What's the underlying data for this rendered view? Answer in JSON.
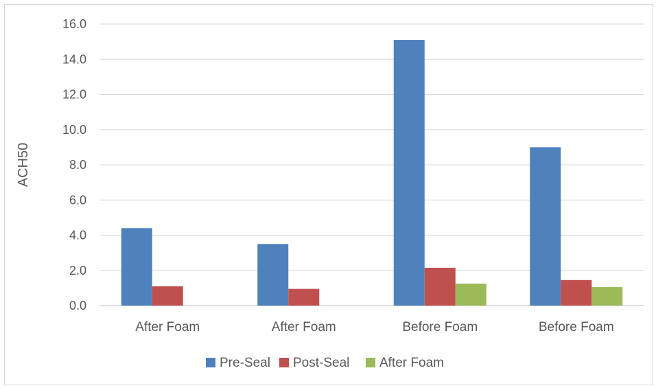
{
  "chart_data": {
    "type": "bar",
    "title": "",
    "xlabel": "",
    "ylabel": "ACH50",
    "categories": [
      "After Foam",
      "After Foam",
      "Before Foam",
      "Before Foam"
    ],
    "series": [
      {
        "name": "Pre-Seal",
        "color": "#4f81bd",
        "values": [
          4.4,
          3.5,
          15.1,
          9.0
        ]
      },
      {
        "name": "Post-Seal",
        "color": "#c0504d",
        "values": [
          1.1,
          0.95,
          2.15,
          1.45
        ]
      },
      {
        "name": "After Foam",
        "color": "#9bbb59",
        "values": [
          null,
          null,
          1.25,
          1.05
        ]
      }
    ],
    "ylim": [
      0,
      16
    ],
    "yticks": [
      "0.0",
      "2.0",
      "4.0",
      "6.0",
      "8.0",
      "10.0",
      "12.0",
      "14.0",
      "16.0"
    ],
    "grid": true,
    "legend_position": "bottom"
  }
}
